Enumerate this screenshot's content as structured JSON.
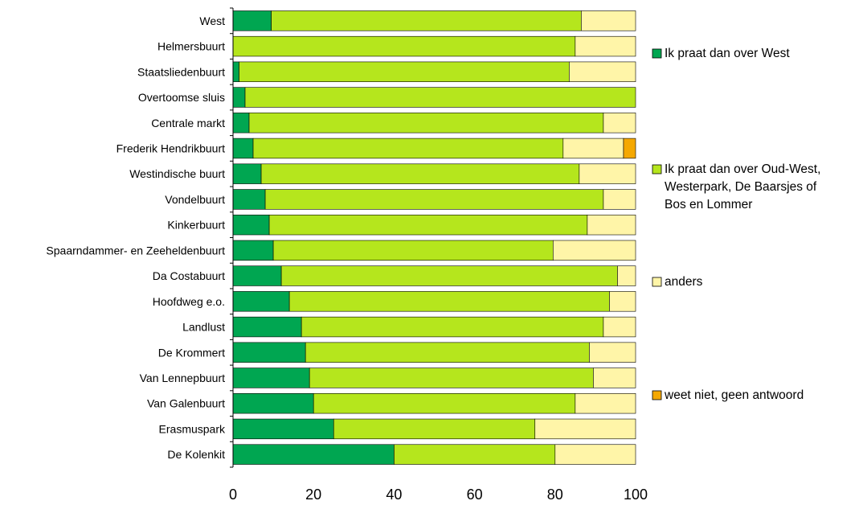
{
  "chart_data": {
    "type": "bar",
    "orientation": "horizontal",
    "stacked": true,
    "title": "",
    "xlabel": "",
    "ylabel": "",
    "xlim": [
      0,
      100
    ],
    "x_ticks": [
      0,
      20,
      40,
      60,
      80,
      100
    ],
    "grid": false,
    "legend_position": "right",
    "categories": [
      "West",
      "Helmersbuurt",
      "Staatsliedenbuurt",
      "Overtoomse sluis",
      "Centrale markt",
      "Frederik Hendrikbuurt",
      "Westindische buurt",
      "Vondelbuurt",
      "Kinkerbuurt",
      "Spaarndammer- en Zeeheldenbuurt",
      "Da Costabuurt",
      "Hoofdweg e.o.",
      "Landlust",
      "De Krommert",
      "Van Lennepbuurt",
      "Van Galenbuurt",
      "Erasmuspark",
      "De Kolenkit"
    ],
    "series": [
      {
        "name": "Ik praat dan over West",
        "color": "#00a651",
        "values": [
          9.5,
          0,
          1.5,
          3,
          4,
          5,
          7,
          8,
          9,
          10,
          12,
          14,
          17,
          18,
          19,
          20,
          25,
          40
        ]
      },
      {
        "name": "Ik praat dan over Oud-West, Westerpark, De Baarsjes of Bos en Lommer",
        "color": "#b5e61d",
        "values": [
          77,
          85,
          82,
          97,
          88,
          77,
          79,
          84,
          79,
          69.5,
          83.5,
          79.5,
          75,
          70.5,
          70.5,
          65,
          50,
          40
        ]
      },
      {
        "name": "anders",
        "color": "#fff5a8",
        "values": [
          13.5,
          15,
          16.5,
          0,
          8,
          15,
          14,
          8,
          12,
          20.5,
          4.5,
          6.5,
          8,
          11.5,
          10.5,
          15,
          25,
          20
        ]
      },
      {
        "name": "weet niet, geen antwoord",
        "color": "#f5a800",
        "values": [
          0,
          0,
          0,
          0,
          0,
          3,
          0,
          0,
          0,
          0,
          0,
          0,
          0,
          0,
          0,
          0,
          0,
          0
        ]
      }
    ]
  }
}
